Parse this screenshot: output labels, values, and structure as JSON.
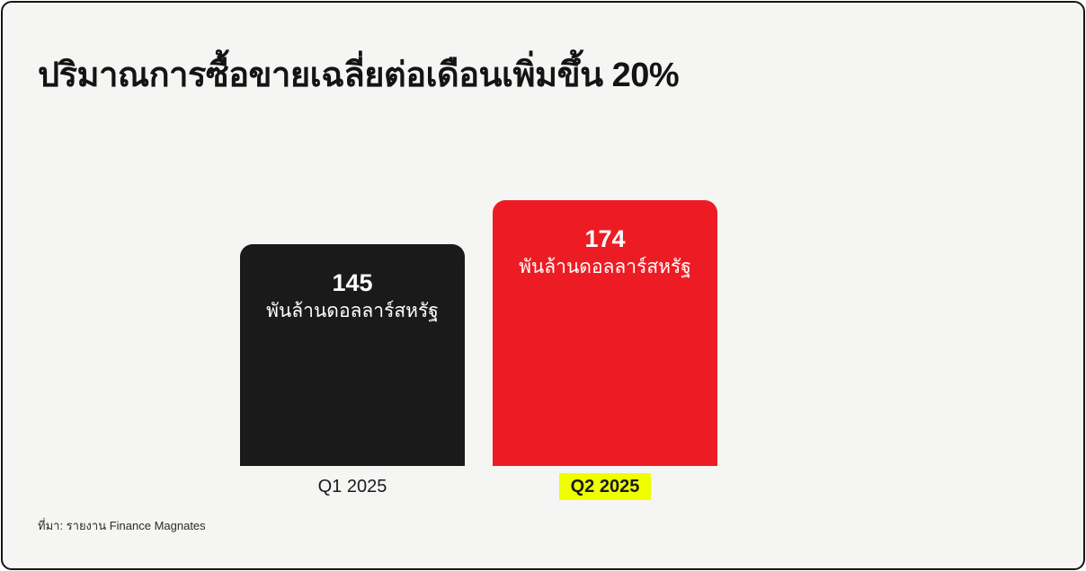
{
  "header": {
    "title": "ปริมาณการซื้อขายเฉลี่ยต่อเดือนเพิ่มขึ้น 20%"
  },
  "chart": {
    "bars": [
      {
        "value": "145",
        "unit": "พันล้านดอลลาร์สหรัฐ",
        "label": "Q1 2025",
        "color": "#1A1A1A",
        "highlighted": false
      },
      {
        "value": "174",
        "unit": "พันล้านดอลลาร์สหรัฐ",
        "label": "Q2 2025",
        "color": "#ED1C24",
        "highlighted": true
      }
    ]
  },
  "footer": {
    "source": "ที่มา: รายงาน Finance Magnates"
  },
  "colors": {
    "background": "#F5F5F4",
    "frame_border": "#161616",
    "bar_q1": "#1A1A1A",
    "bar_q2": "#ED1C24",
    "highlight": "#EFFF00",
    "bar_text": "#FFFFFF"
  },
  "chart_data": {
    "type": "bar",
    "title": "ปริมาณการซื้อขายเฉลี่ยต่อเดือนเพิ่มขึ้น 20%",
    "categories": [
      "Q1 2025",
      "Q2 2025"
    ],
    "values": [
      145,
      174
    ],
    "value_unit": "พันล้านดอลลาร์สหรัฐ",
    "bar_colors": [
      "#1A1A1A",
      "#ED1C24"
    ],
    "highlighted_category": "Q2 2025",
    "source": "ที่มา: รายงาน Finance Magnates",
    "ylim": [
      0,
      174
    ],
    "grid": false,
    "legend": false,
    "data_labels": "inside-top"
  }
}
